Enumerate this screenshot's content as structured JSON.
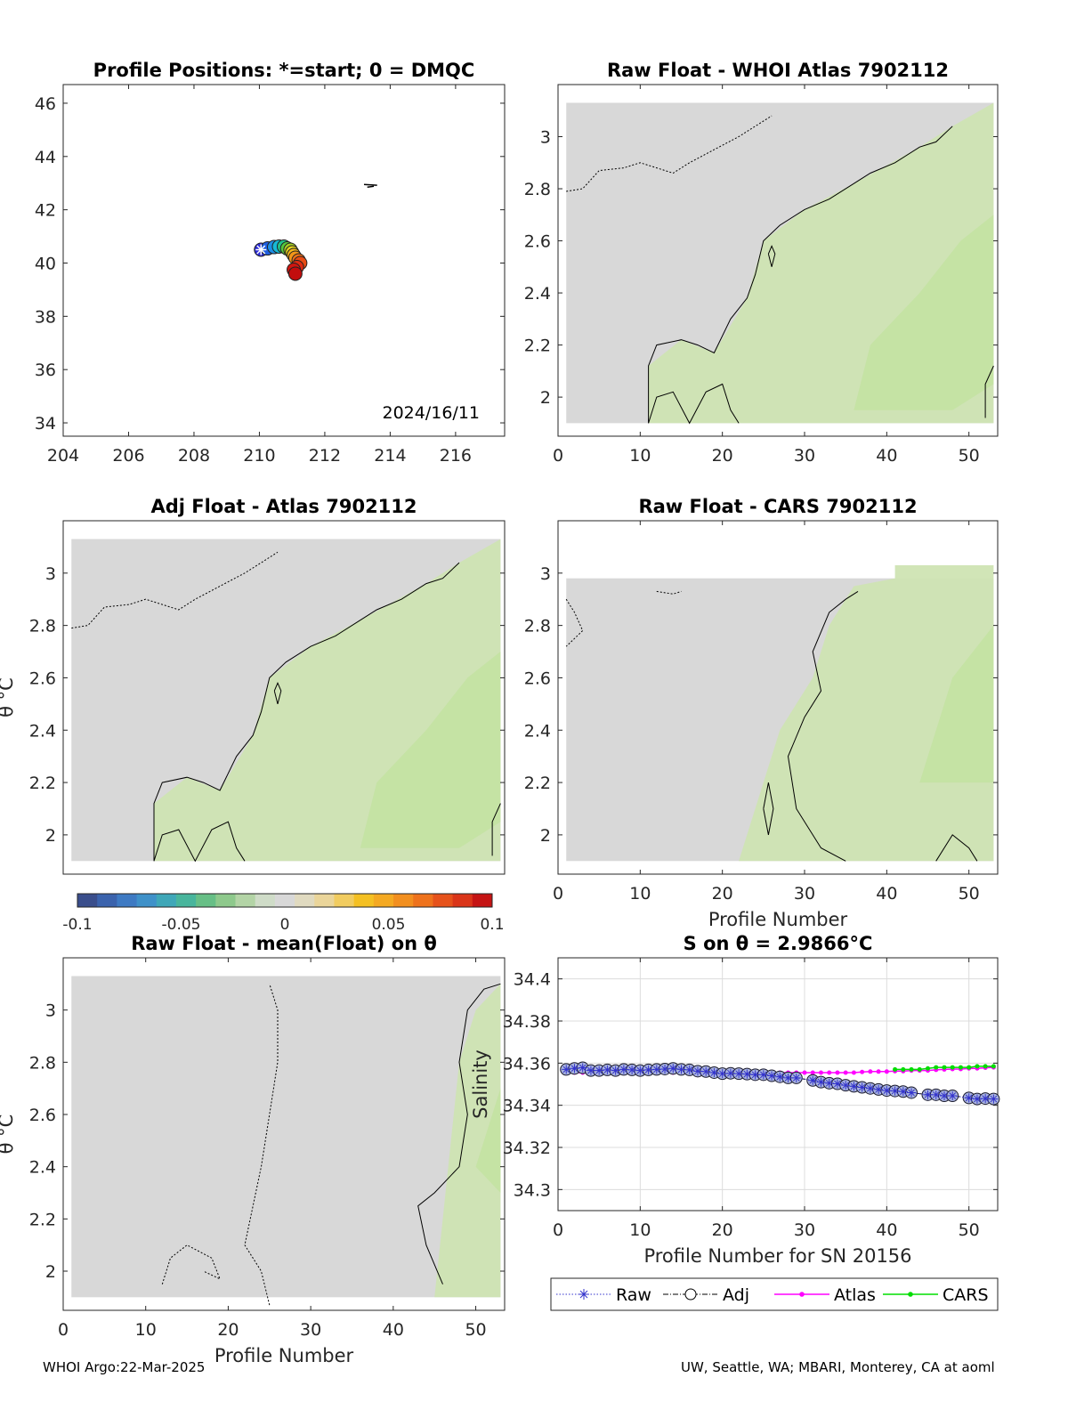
{
  "footer": {
    "left": "WHOI Argo:22-Mar-2025",
    "right": "UW, Seattle, WA; MBARI, Monterey, CA at aoml"
  },
  "colorbar": {
    "ticks": [
      "-0.1",
      "-0.05",
      "0",
      "0.05",
      "0.1"
    ],
    "range": [
      -0.1,
      0.1
    ]
  },
  "chart_data": [
    {
      "id": "positions",
      "type": "scatter",
      "title": "Profile Positions: *=start; 0 = DMQC",
      "xlabel": "",
      "ylabel": "",
      "xlim": [
        204,
        217.5
      ],
      "ylim": [
        33.5,
        46.7
      ],
      "xticks": [
        204,
        206,
        208,
        210,
        212,
        214,
        216
      ],
      "yticks": [
        34,
        36,
        38,
        40,
        42,
        44,
        46
      ],
      "annotation": "2024/16/11",
      "points": [
        [
          210.05,
          40.5
        ],
        [
          210.25,
          40.55
        ],
        [
          210.45,
          40.6
        ],
        [
          210.6,
          40.62
        ],
        [
          210.75,
          40.62
        ],
        [
          210.85,
          40.55
        ],
        [
          210.95,
          40.5
        ],
        [
          211.0,
          40.4
        ],
        [
          211.05,
          40.3
        ],
        [
          211.1,
          40.2
        ],
        [
          211.2,
          40.1
        ],
        [
          211.25,
          40.0
        ],
        [
          211.15,
          39.85
        ],
        [
          211.05,
          39.75
        ],
        [
          211.1,
          39.6
        ]
      ],
      "grid": false
    },
    {
      "id": "raw-whoi",
      "type": "heatmap",
      "title": "Raw Float - WHOI Atlas  7902112",
      "xlabel": "",
      "ylabel": "",
      "xlim": [
        0,
        53.5
      ],
      "ylim": [
        1.85,
        3.2
      ],
      "xticks": [
        0,
        10,
        20,
        30,
        40,
        50
      ],
      "yticks": [
        2,
        2.2,
        2.4,
        2.6,
        2.8,
        3
      ],
      "grid": false
    },
    {
      "id": "adj-atlas",
      "type": "heatmap",
      "title": "Adj Float - Atlas  7902112",
      "xlabel": "",
      "ylabel": "θ °C",
      "xlim": [
        0,
        53.5
      ],
      "ylim": [
        1.85,
        3.2
      ],
      "xticks": [],
      "yticks": [
        2,
        2.2,
        2.4,
        2.6,
        2.8,
        3
      ],
      "grid": false
    },
    {
      "id": "raw-cars",
      "type": "heatmap",
      "title": "Raw Float - CARS  7902112",
      "xlabel": "Profile Number",
      "ylabel": "",
      "xlim": [
        0,
        53.5
      ],
      "ylim": [
        1.85,
        3.2
      ],
      "xticks": [
        0,
        10,
        20,
        30,
        40,
        50
      ],
      "yticks": [
        2,
        2.2,
        2.4,
        2.6,
        2.8,
        3
      ],
      "grid": false
    },
    {
      "id": "raw-mean",
      "type": "heatmap",
      "title": "Raw Float - mean(Float) on θ",
      "xlabel": "Profile Number",
      "ylabel": "θ °C",
      "xlim": [
        0,
        53.5
      ],
      "ylim": [
        1.85,
        3.2
      ],
      "xticks": [
        0,
        10,
        20,
        30,
        40,
        50
      ],
      "yticks": [
        2,
        2.2,
        2.4,
        2.6,
        2.8,
        3
      ],
      "grid": false
    },
    {
      "id": "s-on-theta",
      "type": "line",
      "title": "S on θ = 2.9866°C",
      "xlabel": "Profile Number for SN 20156",
      "ylabel": "Salinity",
      "xlim": [
        0,
        53.5
      ],
      "ylim": [
        34.29,
        34.41
      ],
      "xticks": [
        0,
        10,
        20,
        30,
        40,
        50
      ],
      "yticks": [
        34.3,
        34.32,
        34.34,
        34.36,
        34.38,
        34.4
      ],
      "grid": true,
      "legend": "bottom-outside",
      "series": [
        {
          "name": "Raw",
          "color": "#3333cc",
          "x": [
            1,
            2,
            3,
            4,
            5,
            6,
            7,
            8,
            9,
            10,
            11,
            12,
            13,
            14,
            15,
            16,
            17,
            18,
            19,
            20,
            21,
            22,
            23,
            24,
            25,
            26,
            27,
            28,
            29,
            31,
            32,
            33,
            34,
            35,
            36,
            37,
            38,
            39,
            40,
            41,
            42,
            43,
            45,
            46,
            47,
            48,
            50,
            51,
            52,
            53
          ],
          "y": [
            34.357,
            34.3575,
            34.3578,
            34.3565,
            34.3565,
            34.3568,
            34.3565,
            34.357,
            34.3568,
            34.3565,
            34.3568,
            34.357,
            34.3572,
            34.3575,
            34.357,
            34.3568,
            34.3562,
            34.356,
            34.3555,
            34.355,
            34.3552,
            34.355,
            34.3548,
            34.3545,
            34.3545,
            34.354,
            34.3535,
            34.353,
            34.353,
            34.3518,
            34.351,
            34.3505,
            34.3502,
            34.3495,
            34.349,
            34.3485,
            34.348,
            34.3475,
            34.347,
            34.3468,
            34.3465,
            34.346,
            34.345,
            34.345,
            34.3445,
            34.3445,
            34.3435,
            34.343,
            34.3432,
            34.343
          ]
        },
        {
          "name": "Adj",
          "color": "#000000",
          "x": [
            1,
            2,
            3,
            4,
            5,
            6,
            7,
            8,
            9,
            10,
            11,
            12,
            13,
            14,
            15,
            16,
            17,
            18,
            19,
            20,
            21,
            22,
            23,
            24,
            25,
            26,
            27,
            28,
            29,
            31,
            32,
            33,
            34,
            35,
            36,
            37,
            38,
            39,
            40,
            41,
            42,
            43,
            45,
            46,
            47,
            48,
            50,
            51,
            52,
            53
          ],
          "y": [
            34.357,
            34.3575,
            34.3578,
            34.3565,
            34.3565,
            34.3568,
            34.3565,
            34.357,
            34.3568,
            34.3565,
            34.3568,
            34.357,
            34.3572,
            34.3575,
            34.357,
            34.3568,
            34.3562,
            34.356,
            34.3555,
            34.355,
            34.3552,
            34.355,
            34.3548,
            34.3545,
            34.3545,
            34.354,
            34.3535,
            34.353,
            34.353,
            34.3518,
            34.351,
            34.3505,
            34.3502,
            34.3495,
            34.349,
            34.3485,
            34.348,
            34.3475,
            34.347,
            34.3468,
            34.3465,
            34.346,
            34.345,
            34.345,
            34.3445,
            34.3445,
            34.3435,
            34.343,
            34.3432,
            34.343
          ]
        },
        {
          "name": "Atlas",
          "color": "#ff00ff",
          "x": [
            1,
            2,
            3,
            4,
            5,
            6,
            7,
            8,
            9,
            10,
            11,
            12,
            13,
            14,
            15,
            16,
            17,
            18,
            19,
            20,
            21,
            22,
            23,
            24,
            25,
            26,
            27,
            28,
            29,
            30,
            31,
            32,
            33,
            34,
            35,
            36,
            37,
            38,
            39,
            40,
            41,
            42,
            43,
            44,
            45,
            46,
            47,
            48,
            49,
            50,
            51,
            52,
            53
          ],
          "y": [
            34.3555,
            34.3555,
            34.3555,
            34.3555,
            34.3555,
            34.3555,
            34.3555,
            34.3555,
            34.3555,
            34.3555,
            34.3555,
            34.3555,
            34.3555,
            34.3555,
            34.3555,
            34.3555,
            34.3555,
            34.3555,
            34.3555,
            34.3555,
            34.3555,
            34.3555,
            34.3555,
            34.3555,
            34.3555,
            34.3555,
            34.3555,
            34.3555,
            34.3555,
            34.3555,
            34.3555,
            34.3555,
            34.3555,
            34.3555,
            34.3555,
            34.3555,
            34.3558,
            34.356,
            34.356,
            34.356,
            34.3562,
            34.3562,
            34.3565,
            34.3565,
            34.3565,
            34.3568,
            34.357,
            34.3572,
            34.3572,
            34.3575,
            34.3575,
            34.3578,
            34.358
          ]
        },
        {
          "name": "CARS",
          "color": "#00dd00",
          "x": [
            41,
            42,
            43,
            44,
            45,
            46,
            47,
            48,
            49,
            50,
            51,
            52,
            53
          ],
          "y": [
            34.357,
            34.357,
            34.357,
            34.357,
            34.3575,
            34.358,
            34.358,
            34.358,
            34.358,
            34.358,
            34.3585,
            34.3585,
            34.3585
          ]
        }
      ]
    }
  ]
}
